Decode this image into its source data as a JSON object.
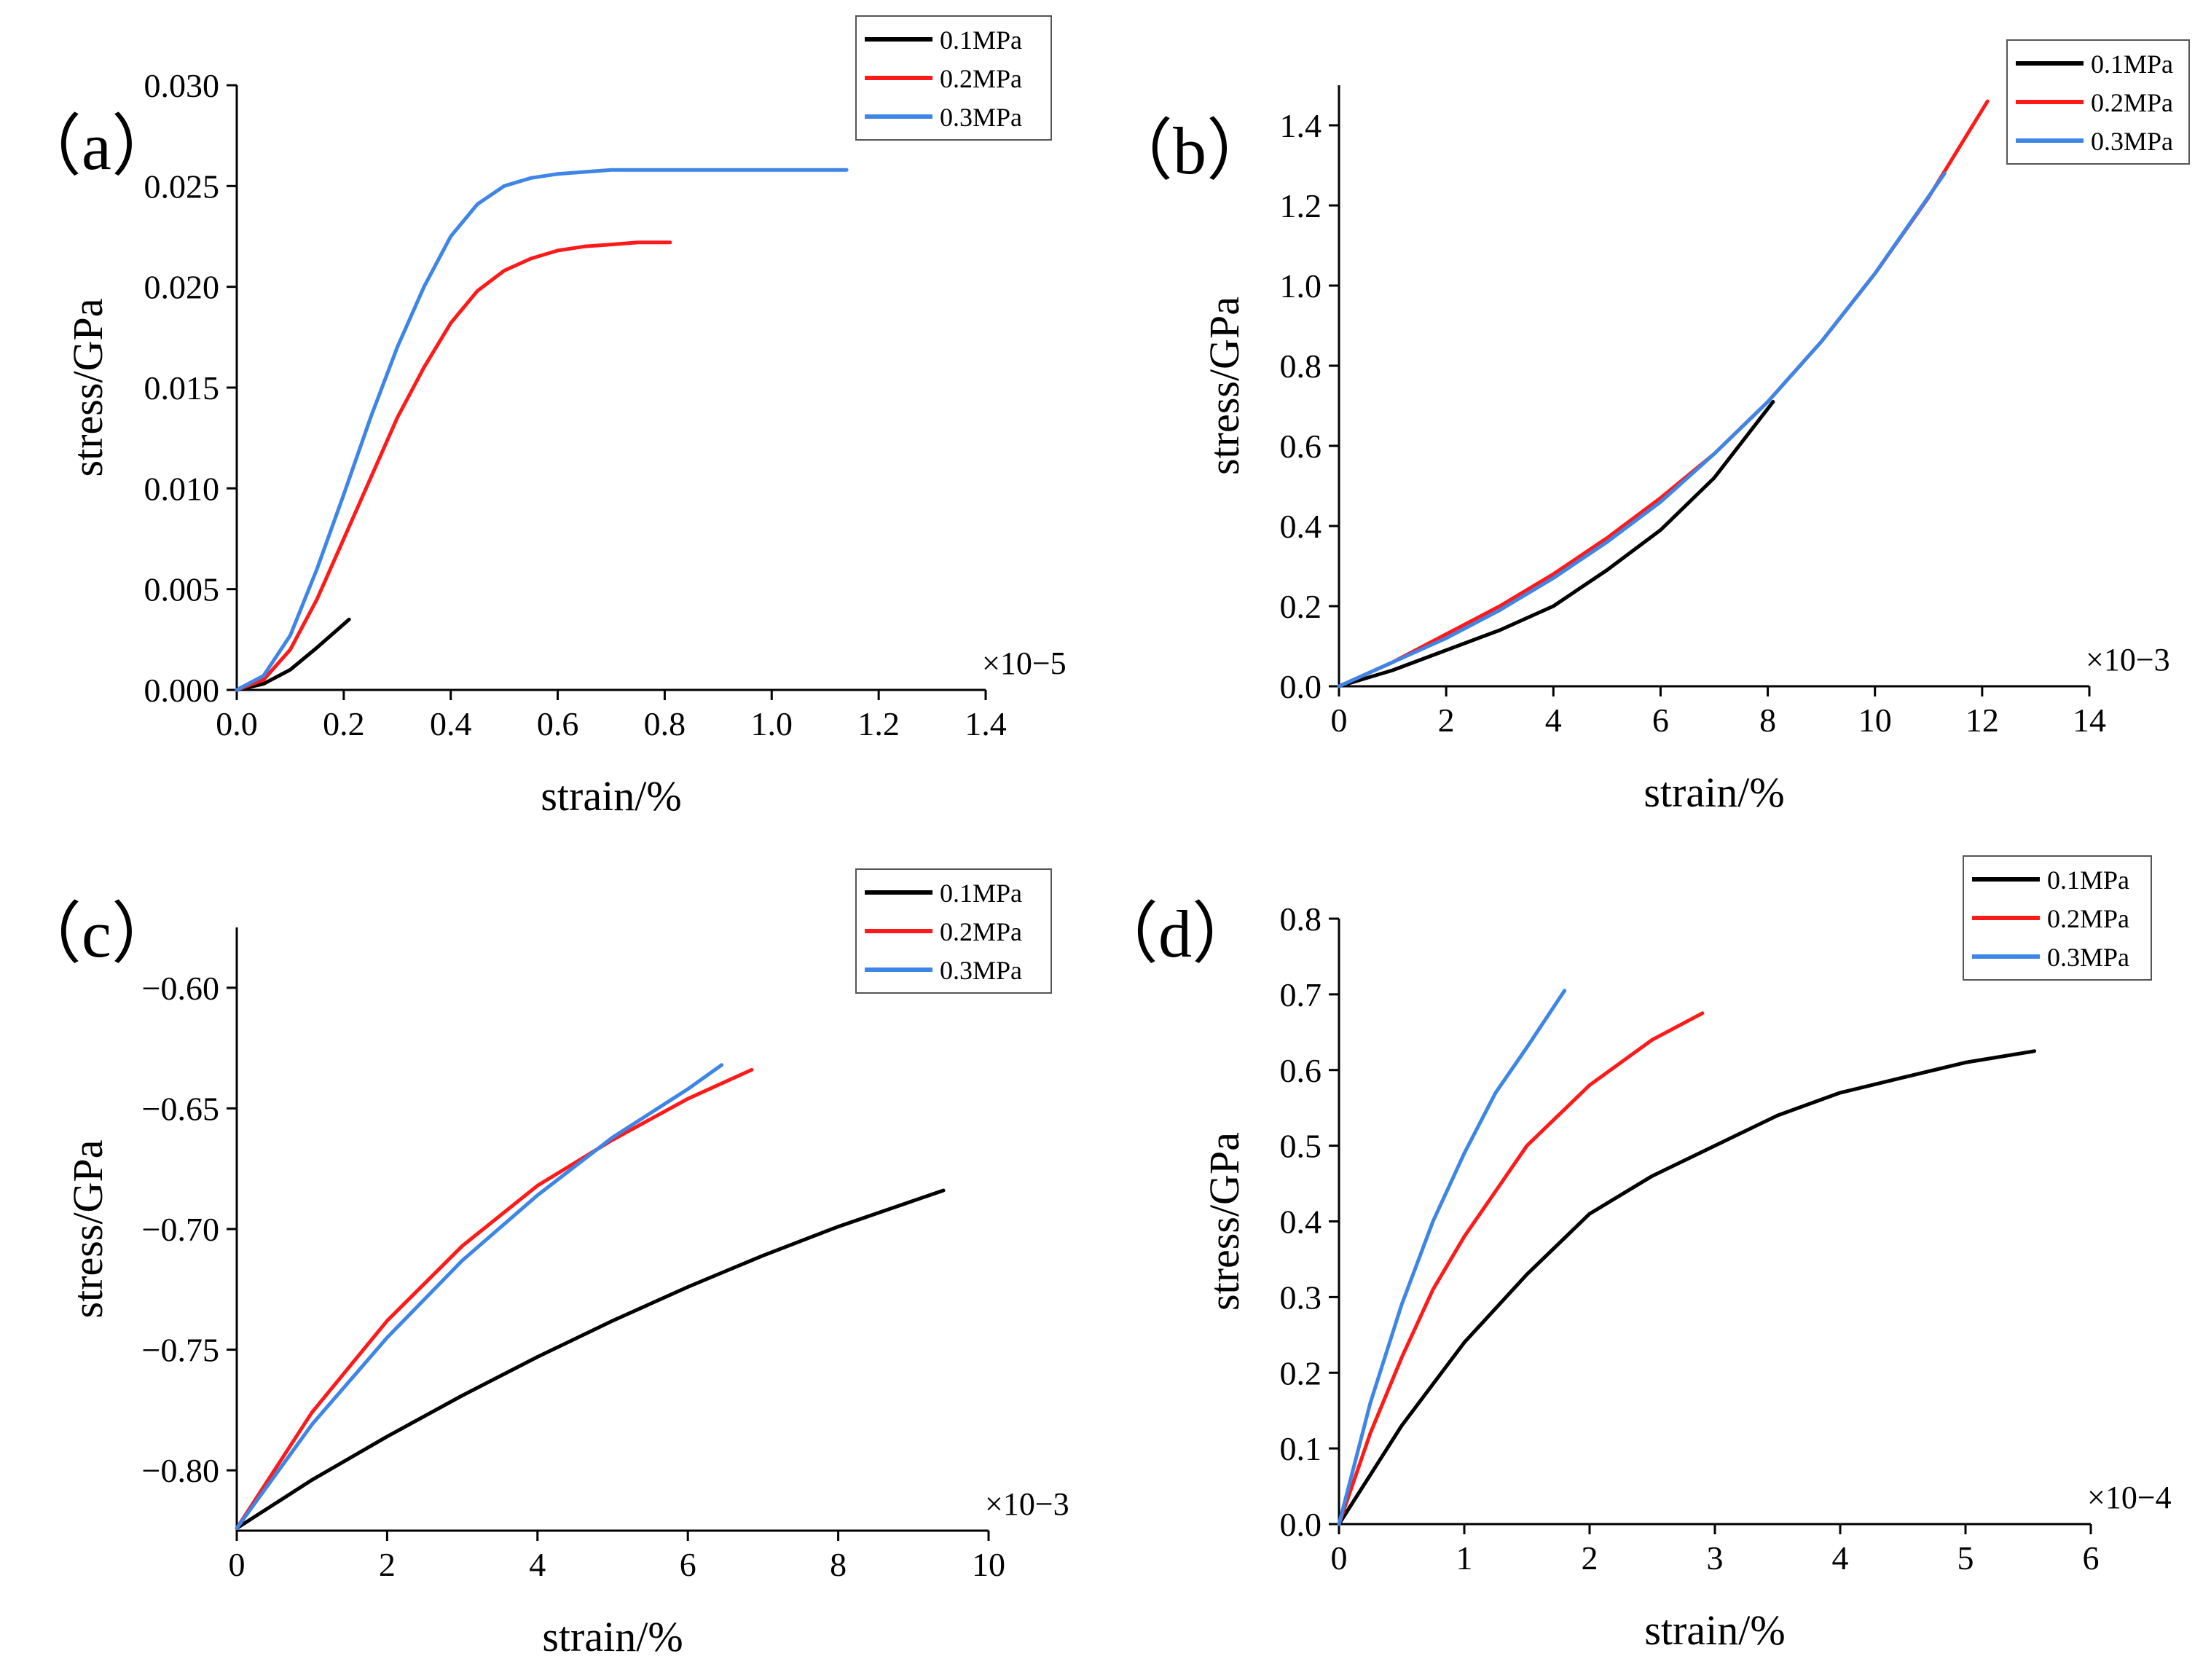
{
  "figure": {
    "colors": {
      "s01": "#000000",
      "s02": "#ff1a1a",
      "s03": "#3d85e6"
    }
  },
  "chart_data": [
    {
      "panel_label": "（a）",
      "type": "line",
      "xlabel": "strain/%",
      "ylabel": "stress/GPa",
      "x_multiplier": "×10−5",
      "xlim": [
        0,
        1.4
      ],
      "ylim": [
        0,
        0.03
      ],
      "x_ticks": [
        0.0,
        0.2,
        0.4,
        0.6,
        0.8,
        1.0,
        1.2,
        1.4
      ],
      "x_tick_labels": [
        "0.0",
        "0.2",
        "0.4",
        "0.6",
        "0.8",
        "1.0",
        "1.2",
        "1.4"
      ],
      "y_ticks": [
        0.0,
        0.005,
        0.01,
        0.015,
        0.02,
        0.025,
        0.03
      ],
      "y_tick_labels": [
        "0.000",
        "0.005",
        "0.010",
        "0.015",
        "0.020",
        "0.025",
        "0.030"
      ],
      "legend": {
        "placement": "top-right",
        "entries": [
          "0.1MPa",
          "0.2MPa",
          "0.3MPa"
        ]
      },
      "series": [
        {
          "name": "0.1MPa",
          "color": "#000000",
          "x": [
            0,
            0.05,
            0.1,
            0.15,
            0.21
          ],
          "y": [
            0,
            0.0003,
            0.001,
            0.0021,
            0.0035
          ]
        },
        {
          "name": "0.2MPa",
          "color": "#ff1a1a",
          "x": [
            0,
            0.05,
            0.1,
            0.15,
            0.2,
            0.25,
            0.3,
            0.35,
            0.4,
            0.45,
            0.5,
            0.55,
            0.6,
            0.65,
            0.7,
            0.75,
            0.81
          ],
          "y": [
            0,
            0.0005,
            0.002,
            0.0045,
            0.0075,
            0.0105,
            0.0135,
            0.016,
            0.0182,
            0.0198,
            0.0208,
            0.0214,
            0.0218,
            0.022,
            0.0221,
            0.0222,
            0.0222
          ]
        },
        {
          "name": "0.3MPa",
          "color": "#3d85e6",
          "x": [
            0,
            0.05,
            0.1,
            0.15,
            0.2,
            0.25,
            0.3,
            0.35,
            0.4,
            0.45,
            0.5,
            0.55,
            0.6,
            0.65,
            0.7,
            0.8,
            0.9,
            1.0,
            1.14
          ],
          "y": [
            0,
            0.0007,
            0.0027,
            0.006,
            0.0097,
            0.0135,
            0.017,
            0.02,
            0.0225,
            0.0241,
            0.025,
            0.0254,
            0.0256,
            0.0257,
            0.0258,
            0.0258,
            0.0258,
            0.0258,
            0.0258
          ]
        }
      ]
    },
    {
      "panel_label": "（b）",
      "type": "line",
      "xlabel": "strain/%",
      "ylabel": "stress/GPa",
      "x_multiplier": "×10−3",
      "xlim": [
        0,
        14
      ],
      "ylim": [
        0,
        1.5
      ],
      "x_ticks": [
        0,
        2,
        4,
        6,
        8,
        10,
        12,
        14
      ],
      "x_tick_labels": [
        "0",
        "2",
        "4",
        "6",
        "8",
        "10",
        "12",
        "14"
      ],
      "y_ticks": [
        0.0,
        0.2,
        0.4,
        0.6,
        0.8,
        1.0,
        1.2,
        1.4
      ],
      "y_tick_labels": [
        "0.0",
        "0.2",
        "0.4",
        "0.6",
        "0.8",
        "1.0",
        "1.2",
        "1.4"
      ],
      "legend": {
        "placement": "top-right",
        "entries": [
          "0.1MPa",
          "0.2MPa",
          "0.3MPa"
        ]
      },
      "series": [
        {
          "name": "0.1MPa",
          "color": "#000000",
          "x": [
            0,
            1,
            2,
            3,
            4,
            5,
            6,
            7,
            8.1
          ],
          "y": [
            0,
            0.04,
            0.09,
            0.14,
            0.2,
            0.29,
            0.39,
            0.52,
            0.71
          ]
        },
        {
          "name": "0.2MPa",
          "color": "#ff1a1a",
          "x": [
            0,
            1,
            2,
            3,
            4,
            5,
            6,
            7,
            8,
            9,
            10,
            11,
            12.1
          ],
          "y": [
            0,
            0.06,
            0.13,
            0.2,
            0.28,
            0.37,
            0.47,
            0.58,
            0.71,
            0.86,
            1.03,
            1.22,
            1.46
          ]
        },
        {
          "name": "0.3MPa",
          "color": "#3d85e6",
          "x": [
            0,
            1,
            2,
            3,
            4,
            5,
            6,
            7,
            8,
            9,
            10,
            11.3
          ],
          "y": [
            0,
            0.06,
            0.12,
            0.19,
            0.27,
            0.36,
            0.46,
            0.58,
            0.71,
            0.86,
            1.03,
            1.28
          ]
        }
      ]
    },
    {
      "panel_label": "（c）",
      "type": "line",
      "xlabel": "strain/%",
      "ylabel": "stress/GPa",
      "x_multiplier": "×10−3",
      "xlim": [
        0,
        10
      ],
      "ylim": [
        -0.825,
        -0.575
      ],
      "x_ticks": [
        0,
        2,
        4,
        6,
        8,
        10
      ],
      "x_tick_labels": [
        "0",
        "2",
        "4",
        "6",
        "8",
        "10"
      ],
      "y_ticks": [
        -0.8,
        -0.75,
        -0.7,
        -0.65,
        -0.6
      ],
      "y_tick_labels": [
        "−0.80",
        "−0.75",
        "−0.70",
        "−0.65",
        "−0.60"
      ],
      "legend": {
        "placement": "top-right",
        "entries": [
          "0.1MPa",
          "0.2MPa",
          "0.3MPa"
        ]
      },
      "series": [
        {
          "name": "0.1MPa",
          "color": "#000000",
          "x": [
            0,
            1,
            2,
            3,
            4,
            5,
            6,
            7,
            8,
            9.4
          ],
          "y": [
            -0.824,
            -0.804,
            -0.786,
            -0.769,
            -0.753,
            -0.738,
            -0.724,
            -0.711,
            -0.699,
            -0.684
          ]
        },
        {
          "name": "0.2MPa",
          "color": "#ff1a1a",
          "x": [
            0,
            1,
            2,
            3,
            4,
            5,
            6,
            6.85
          ],
          "y": [
            -0.824,
            -0.776,
            -0.738,
            -0.707,
            -0.682,
            -0.663,
            -0.646,
            -0.634
          ]
        },
        {
          "name": "0.3MPa",
          "color": "#3d85e6",
          "x": [
            0,
            1,
            2,
            3,
            4,
            5,
            6,
            6.45
          ],
          "y": [
            -0.824,
            -0.781,
            -0.745,
            -0.713,
            -0.686,
            -0.662,
            -0.642,
            -0.632
          ]
        }
      ]
    },
    {
      "panel_label": "（d）",
      "type": "line",
      "xlabel": "strain/%",
      "ylabel": "stress/GPa",
      "x_multiplier": "×10−4",
      "xlim": [
        0,
        6
      ],
      "ylim": [
        0,
        0.8
      ],
      "x_ticks": [
        0,
        1,
        2,
        3,
        4,
        5,
        6
      ],
      "x_tick_labels": [
        "0",
        "1",
        "2",
        "3",
        "4",
        "5",
        "6"
      ],
      "y_ticks": [
        0.0,
        0.1,
        0.2,
        0.3,
        0.4,
        0.5,
        0.6,
        0.7,
        0.8
      ],
      "y_tick_labels": [
        "0.0",
        "0.1",
        "0.2",
        "0.3",
        "0.4",
        "0.5",
        "0.6",
        "0.7",
        "0.8"
      ],
      "legend": {
        "placement": "top-right",
        "entries": [
          "0.1MPa",
          "0.2MPa",
          "0.3MPa"
        ]
      },
      "series": [
        {
          "name": "0.1MPa",
          "color": "#000000",
          "x": [
            0,
            0.5,
            1,
            1.5,
            2,
            2.5,
            3,
            3.5,
            4,
            4.5,
            5,
            5.55
          ],
          "y": [
            0,
            0.13,
            0.24,
            0.33,
            0.41,
            0.46,
            0.5,
            0.54,
            0.57,
            0.59,
            0.61,
            0.625
          ]
        },
        {
          "name": "0.2MPa",
          "color": "#ff1a1a",
          "x": [
            0,
            0.25,
            0.5,
            0.75,
            1,
            1.25,
            1.5,
            1.75,
            2,
            2.25,
            2.5,
            2.9
          ],
          "y": [
            0,
            0.12,
            0.22,
            0.31,
            0.38,
            0.44,
            0.5,
            0.54,
            0.58,
            0.61,
            0.64,
            0.675
          ]
        },
        {
          "name": "0.3MPa",
          "color": "#3d85e6",
          "x": [
            0,
            0.25,
            0.5,
            0.75,
            1,
            1.25,
            1.5,
            1.8
          ],
          "y": [
            0,
            0.16,
            0.29,
            0.4,
            0.49,
            0.57,
            0.63,
            0.705
          ]
        }
      ]
    }
  ]
}
